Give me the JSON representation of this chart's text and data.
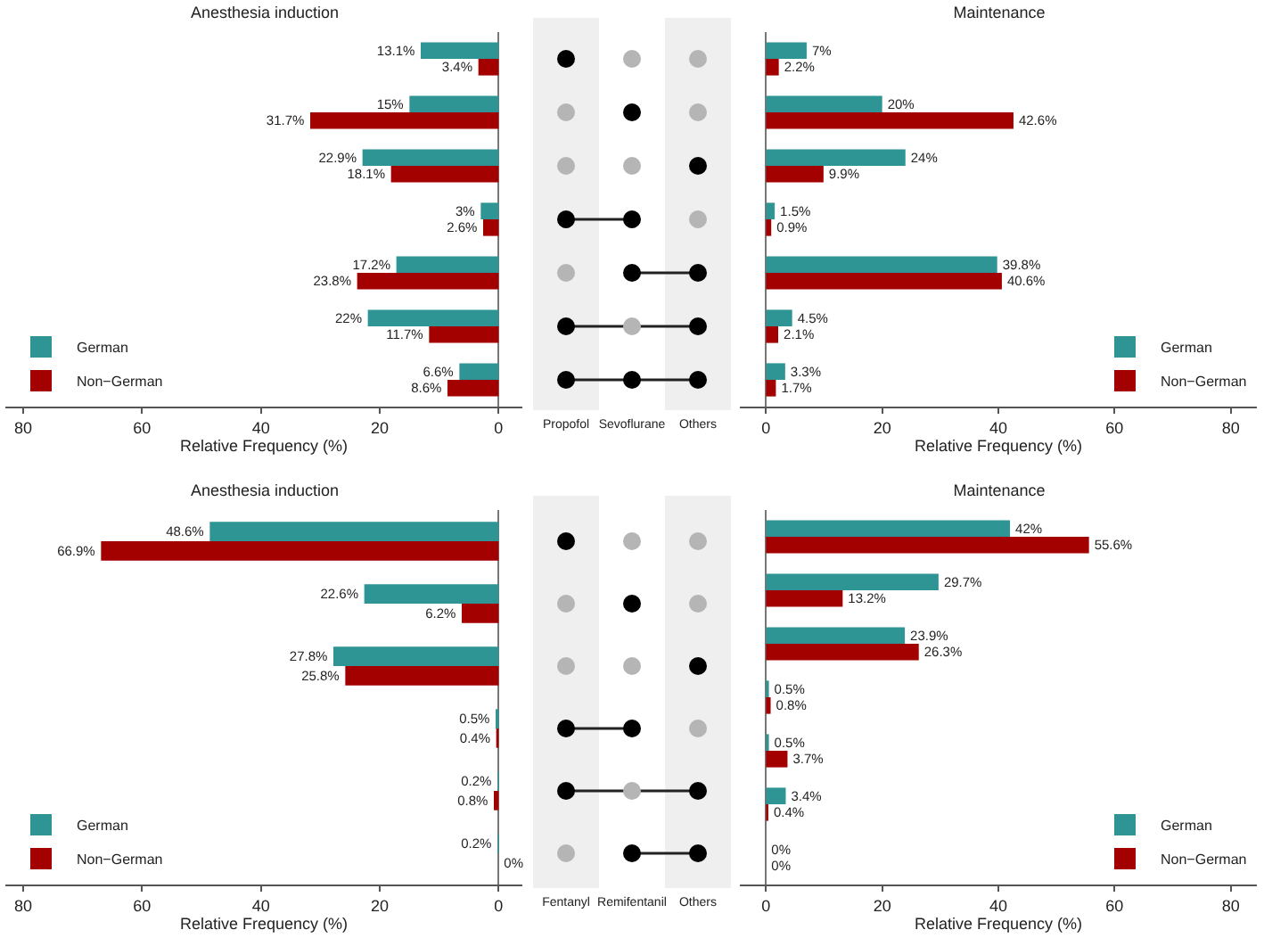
{
  "chart_data": [
    {
      "type": "bar",
      "orientation": "horizontal",
      "title": "Anesthesia induction",
      "xlabel": "Relative Frequency (%)",
      "categories": [
        null,
        null,
        null,
        null,
        null,
        null,
        null
      ],
      "xlim": [
        83,
        -4
      ],
      "xticks": [
        80,
        60,
        40,
        20,
        0
      ],
      "legend": "bottom left",
      "series": [
        {
          "name": "German",
          "color": "#2e9494",
          "values": [
            13.1,
            15,
            22.9,
            3,
            17.2,
            22,
            6.6
          ],
          "value_labels": [
            "13.1%",
            "15%",
            "22.9%",
            "3%",
            "17.2%",
            "22%",
            "6.6%"
          ]
        },
        {
          "name": "Non−German",
          "color": "#a30000",
          "values": [
            3.4,
            31.7,
            18.1,
            2.6,
            23.8,
            11.7,
            8.6
          ],
          "value_labels": [
            "3.4%",
            "31.7%",
            "18.1%",
            "2.6%",
            "23.8%",
            "11.7%",
            "8.6%"
          ]
        }
      ]
    },
    {
      "type": "other",
      "categories": [
        "Propofol",
        "Sevoflurane",
        "Others"
      ],
      "cells": [
        [
          true,
          false,
          false
        ],
        [
          false,
          true,
          false
        ],
        [
          false,
          false,
          true
        ],
        [
          true,
          true,
          false
        ],
        [
          false,
          true,
          true
        ],
        [
          true,
          false,
          true
        ],
        [
          true,
          true,
          true
        ]
      ]
    },
    {
      "type": "bar",
      "orientation": "horizontal",
      "title": "Maintenance",
      "xlabel": "Relative Frequency (%)",
      "categories": [
        null,
        null,
        null,
        null,
        null,
        null,
        null
      ],
      "xlim": [
        -4.5,
        84.5
      ],
      "xticks": [
        0,
        20,
        40,
        60,
        80
      ],
      "legend": "bottom right",
      "series": [
        {
          "name": "German",
          "color": "#2e9494",
          "values": [
            7,
            20,
            24,
            1.5,
            39.8,
            4.5,
            3.3
          ],
          "value_labels": [
            "7%",
            "20%",
            "24%",
            "1.5%",
            "39.8%",
            "4.5%",
            "3.3%"
          ]
        },
        {
          "name": "Non−German",
          "color": "#a30000",
          "values": [
            2.2,
            42.6,
            9.9,
            0.9,
            40.6,
            2.1,
            1.7
          ],
          "value_labels": [
            "2.2%",
            "42.6%",
            "9.9%",
            "0.9%",
            "40.6%",
            "2.1%",
            "1.7%"
          ]
        }
      ]
    },
    {
      "type": "bar",
      "orientation": "horizontal",
      "title": "Anesthesia induction",
      "xlabel": "Relative Frequency (%)",
      "categories": [
        null,
        null,
        null,
        null,
        null,
        null
      ],
      "xlim": [
        83,
        -4
      ],
      "xticks": [
        80,
        60,
        40,
        20,
        0
      ],
      "legend": "bottom left",
      "series": [
        {
          "name": "German",
          "color": "#2e9494",
          "values": [
            48.6,
            22.6,
            27.8,
            0.5,
            0.2,
            0.2
          ],
          "value_labels": [
            "48.6%",
            "22.6%",
            "27.8%",
            "0.5%",
            "0.2%",
            "0.2%"
          ]
        },
        {
          "name": "Non−German",
          "color": "#a30000",
          "values": [
            66.9,
            6.2,
            25.8,
            0.4,
            0.8,
            0
          ],
          "value_labels": [
            "66.9%",
            "6.2%",
            "25.8%",
            "0.4%",
            "0.8%",
            "0%"
          ]
        }
      ]
    },
    {
      "type": "other",
      "categories": [
        "Fentanyl",
        "Remifentanil",
        "Others"
      ],
      "cells": [
        [
          true,
          false,
          false
        ],
        [
          false,
          true,
          false
        ],
        [
          false,
          false,
          true
        ],
        [
          true,
          true,
          false
        ],
        [
          true,
          false,
          true
        ],
        [
          false,
          true,
          true
        ]
      ]
    },
    {
      "type": "bar",
      "orientation": "horizontal",
      "title": "Maintenance",
      "xlabel": "Relative Frequency (%)",
      "categories": [
        null,
        null,
        null,
        null,
        null,
        null,
        null
      ],
      "xlim": [
        -4.5,
        84.5
      ],
      "xticks": [
        0,
        20,
        40,
        60,
        80
      ],
      "legend": "bottom right",
      "series": [
        {
          "name": "German",
          "color": "#2e9494",
          "values": [
            42,
            29.7,
            23.9,
            0.5,
            0.5,
            3.4,
            0
          ],
          "value_labels": [
            "42%",
            "29.7%",
            "23.9%",
            "0.5%",
            "0.5%",
            "3.4%",
            "0%"
          ]
        },
        {
          "name": "Non−German",
          "color": "#a30000",
          "values": [
            55.6,
            13.2,
            26.3,
            0.8,
            3.7,
            0.4,
            0
          ],
          "value_labels": [
            "55.6%",
            "13.2%",
            "26.3%",
            "0.8%",
            "3.7%",
            "0.4%",
            "0%"
          ]
        }
      ]
    }
  ]
}
